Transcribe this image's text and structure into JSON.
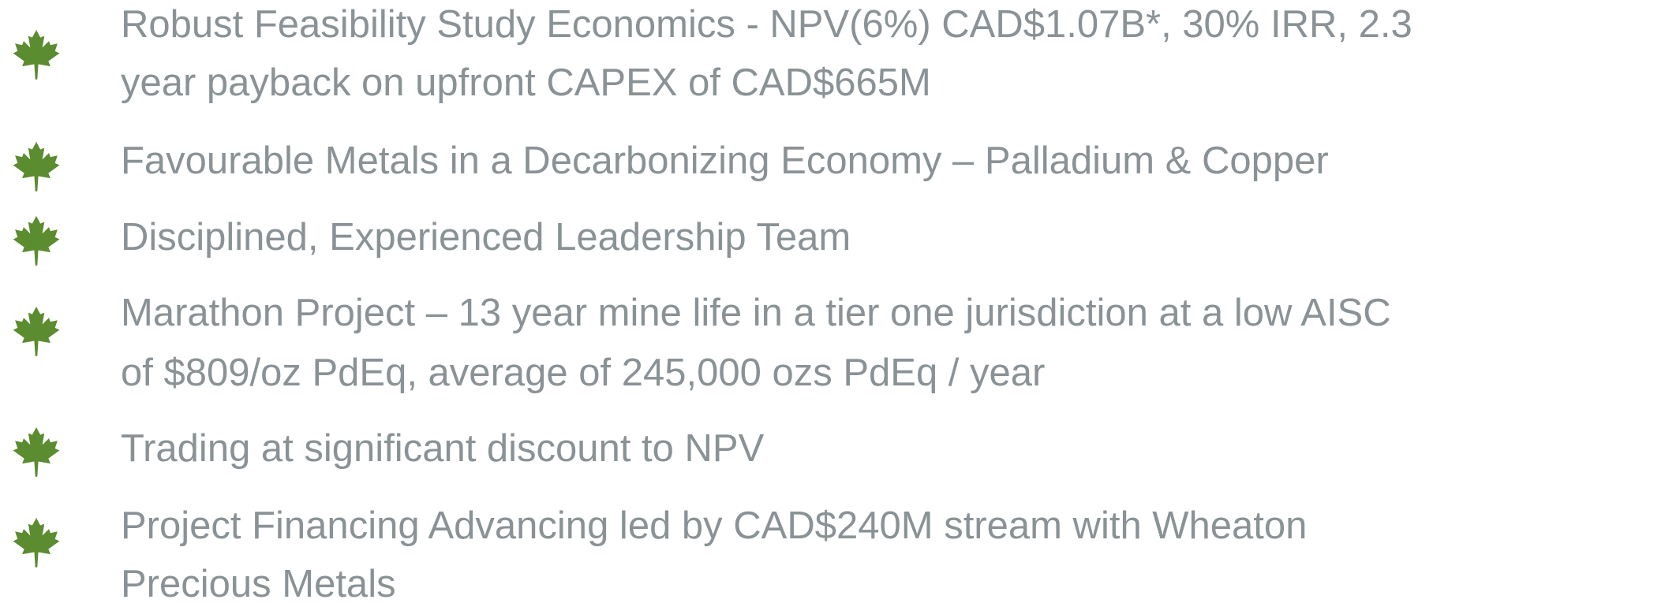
{
  "items": [
    [
      "Robust Feasibility Study Economics - NPV(6%) CAD$1.07B*, 30% IRR, 2.3",
      "year payback on upfront CAPEX of CAD$665M"
    ],
    [
      "Favourable Metals in a Decarbonizing Economy – Palladium & Copper"
    ],
    [
      "Disciplined, Experienced Leadership Team"
    ],
    [
      "Marathon Project – 13 year mine life in a tier one jurisdiction at a low AISC",
      "of $809/oz PdEq, average of 245,000 ozs PdEq / year"
    ],
    [
      "Trading at significant discount to NPV"
    ],
    [
      "Project Financing Advancing led by CAD$240M stream with Wheaton",
      "Precious Metals"
    ]
  ]
}
